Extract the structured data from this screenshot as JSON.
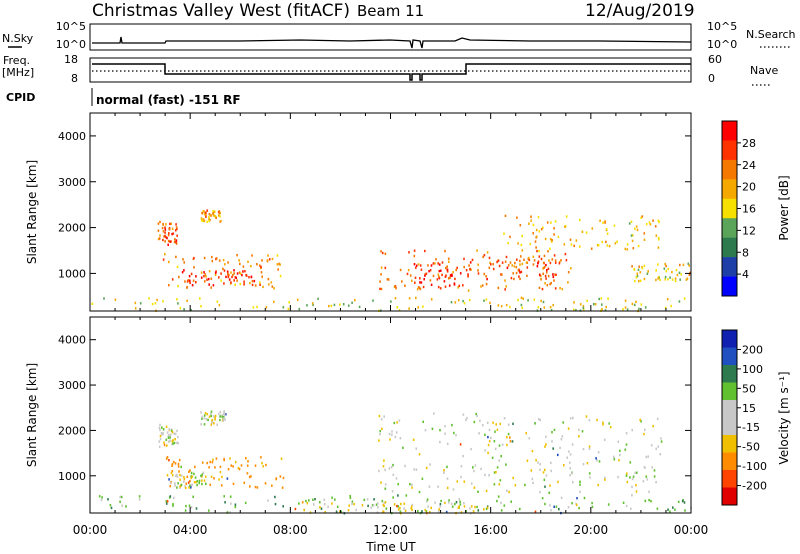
{
  "header": {
    "station": "Christmas Valley West (fitACF)",
    "beam": "Beam 11",
    "date": "12/Aug/2019"
  },
  "top_panels": {
    "nsky_label": "N.Sky",
    "nsky_ticks": [
      "10^5",
      "10^0"
    ],
    "nsearch_label": "N.Search",
    "nsearch_ticks": [
      "10^5",
      "10^0"
    ],
    "freq_label": "Freq.",
    "freq_unit": "[MHz]",
    "freq_ticks": [
      "18",
      "8"
    ],
    "nave_label": "Nave",
    "nave_ticks": [
      "60",
      "0"
    ],
    "cpid_label": "CPID",
    "cpid_text": "normal (fast) -151 RF"
  },
  "colors": {
    "power_scale": [
      "#0000ff",
      "#1f3fa8",
      "#2e7a4f",
      "#5aa55a",
      "#f5e000",
      "#f5a800",
      "#f57800",
      "#ff3300",
      "#ff0000"
    ],
    "velocity_scale": [
      "#e00000",
      "#ff4400",
      "#ff8c00",
      "#f0c000",
      "#c8c8c8",
      "#c8c8c8",
      "#60c030",
      "#2e7a4f",
      "#2050c0",
      "#1020b0"
    ]
  },
  "chart_data": [
    {
      "type": "heatmap",
      "panel": "power",
      "ylabel": "Slant Range [km]",
      "yticks": [
        "4000",
        "3000",
        "2000",
        "1000"
      ],
      "ylim": [
        180,
        4500
      ],
      "xlim_hours": [
        0,
        24
      ],
      "colorbar_label": "Power [dB]",
      "colorbar_ticks": [
        "28",
        "24",
        "20",
        "16",
        "12",
        "8",
        "4"
      ],
      "colorbar_range": [
        0,
        30
      ],
      "regions": [
        {
          "t0": 2.7,
          "t1": 3.5,
          "r0": 1650,
          "r1": 2150,
          "level": 0.8
        },
        {
          "t0": 4.4,
          "t1": 5.2,
          "r0": 2150,
          "r1": 2400,
          "level": 0.65
        },
        {
          "t0": 2.9,
          "t1": 7.7,
          "r0": 700,
          "r1": 1450,
          "level": 0.7
        },
        {
          "t0": 3.6,
          "t1": 6.6,
          "r0": 750,
          "r1": 1100,
          "level": 0.95
        },
        {
          "t0": 11.5,
          "t1": 19.2,
          "r0": 650,
          "r1": 1550,
          "level": 0.75
        },
        {
          "t0": 12.9,
          "t1": 14.8,
          "r0": 700,
          "r1": 1250,
          "level": 0.92
        },
        {
          "t0": 15.0,
          "t1": 18.6,
          "r0": 900,
          "r1": 1400,
          "level": 0.85
        },
        {
          "t0": 16.5,
          "t1": 22.8,
          "r0": 1500,
          "r1": 2300,
          "level": 0.6
        },
        {
          "t0": 0.0,
          "t1": 24.0,
          "r0": 200,
          "r1": 500,
          "level": 0.5
        },
        {
          "t0": 21.5,
          "t1": 24.0,
          "r0": 850,
          "r1": 1250,
          "level": 0.55
        }
      ]
    },
    {
      "type": "heatmap",
      "panel": "velocity",
      "ylabel": "Slant Range [km]",
      "yticks": [
        "4000",
        "3000",
        "2000",
        "1000"
      ],
      "ylim": [
        180,
        4500
      ],
      "xlim_hours": [
        0,
        24
      ],
      "xticks": [
        "00:00",
        "04:00",
        "08:00",
        "12:00",
        "16:00",
        "20:00",
        "00:00"
      ],
      "xlabel": "Time UT",
      "colorbar_label": "Velocity [m s⁻¹]",
      "colorbar_ticks": [
        "200",
        "100",
        "50",
        "15",
        "-15",
        "-50",
        "-100",
        "-200"
      ],
      "colorbar_range": [
        -250,
        250
      ],
      "regions": [
        {
          "t0": 2.7,
          "t1": 3.5,
          "r0": 1650,
          "r1": 2150,
          "vel": 0
        },
        {
          "t0": 4.4,
          "t1": 5.4,
          "r0": 2150,
          "r1": 2450,
          "vel": 0
        },
        {
          "t0": 3.0,
          "t1": 7.7,
          "r0": 750,
          "r1": 1450,
          "vel": -70
        },
        {
          "t0": 3.0,
          "t1": 4.6,
          "r0": 750,
          "r1": 1100,
          "vel": 0
        },
        {
          "t0": 11.5,
          "t1": 22.8,
          "r0": 650,
          "r1": 2400,
          "vel": 0
        },
        {
          "t0": 0.0,
          "t1": 24.0,
          "r0": 200,
          "r1": 600,
          "vel": 30
        },
        {
          "t0": 8.0,
          "t1": 16.0,
          "r0": 200,
          "r1": 450,
          "vel": -25
        }
      ]
    }
  ]
}
